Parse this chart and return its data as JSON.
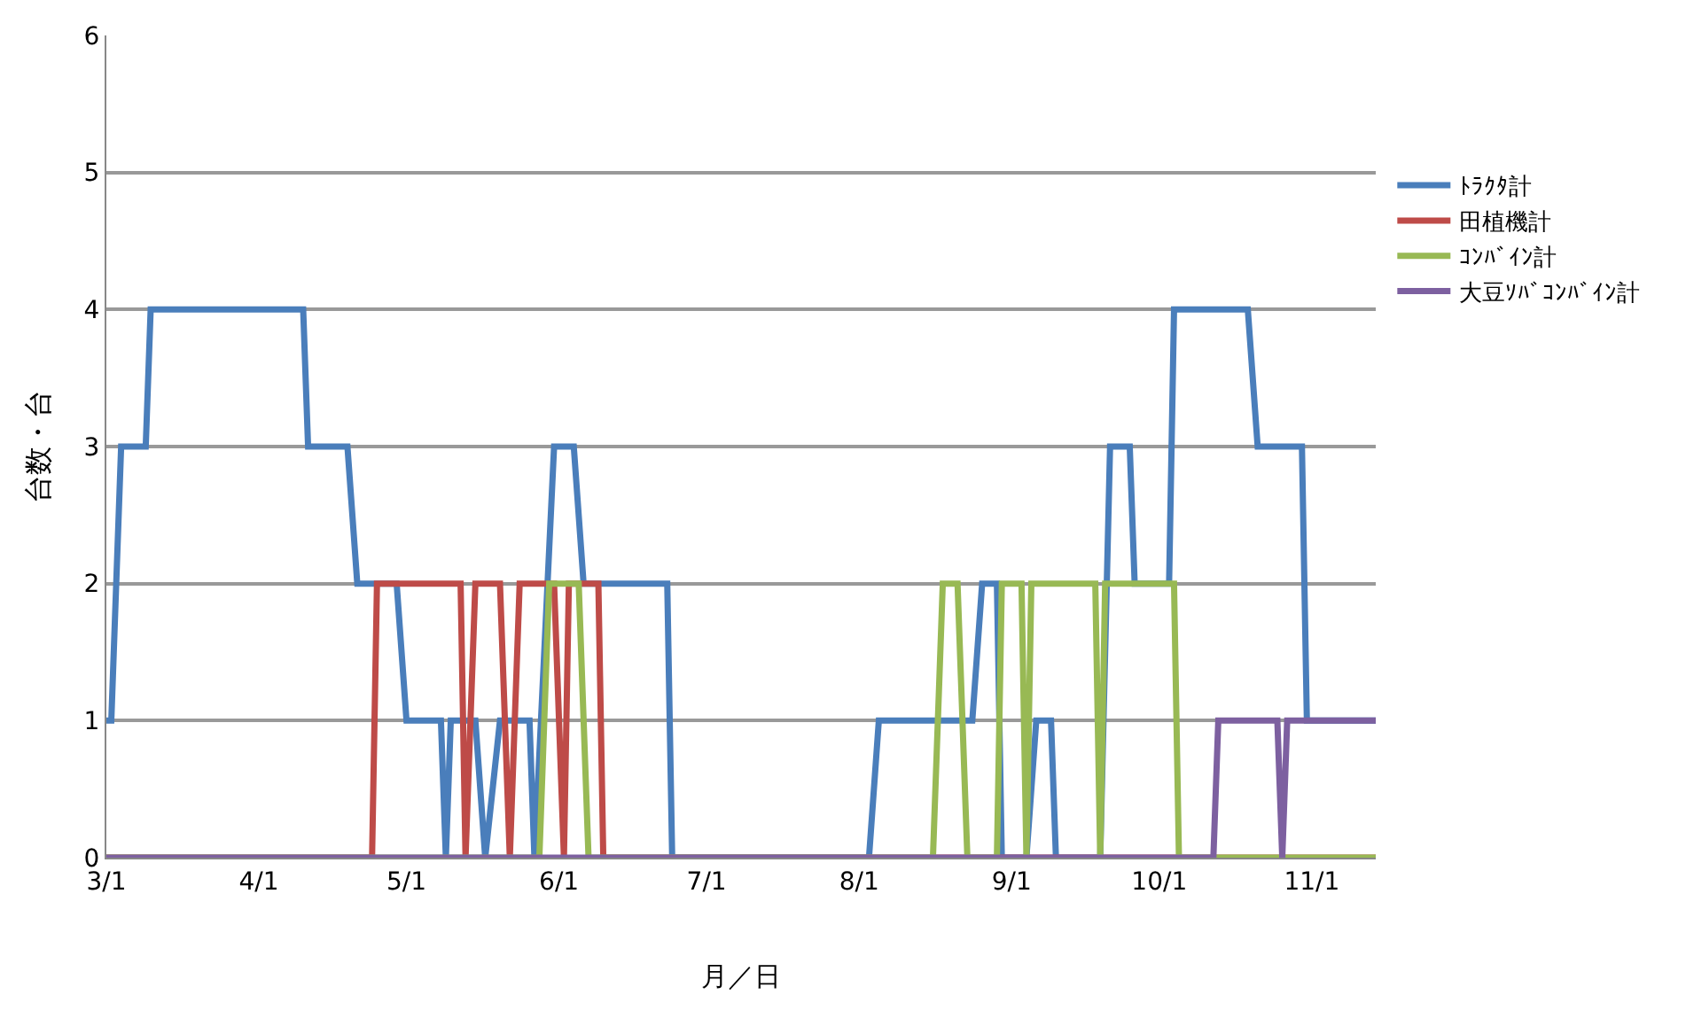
{
  "chart_data": {
    "type": "line",
    "xlabel": "月／日",
    "ylabel": "台数・台",
    "xlim": [
      "--03-01",
      "--11-14"
    ],
    "xticks": [
      {
        "value": "--03-01",
        "label": "3/1"
      },
      {
        "value": "--04-01",
        "label": "4/1"
      },
      {
        "value": "--05-01",
        "label": "5/1"
      },
      {
        "value": "--06-01",
        "label": "6/1"
      },
      {
        "value": "--07-01",
        "label": "7/1"
      },
      {
        "value": "--08-01",
        "label": "8/1"
      },
      {
        "value": "--09-01",
        "label": "9/1"
      },
      {
        "value": "--10-01",
        "label": "10/1"
      },
      {
        "value": "--11-01",
        "label": "11/1"
      }
    ],
    "ylim": [
      0,
      6
    ],
    "yticks": [
      0,
      1,
      2,
      3,
      4,
      5,
      6
    ],
    "grid": "y",
    "legend": "right",
    "marker": "none",
    "line_style": "solid",
    "series": [
      {
        "name": "ﾄﾗｸﾀ計",
        "color": "#4a7ebb",
        "x": [
          "--03-01",
          "--03-02",
          "--03-04",
          "--03-09",
          "--03-10",
          "--04-10",
          "--04-11",
          "--04-19",
          "--04-21",
          "--04-29",
          "--05-01",
          "--05-08",
          "--05-09",
          "--05-10",
          "--05-15",
          "--05-17",
          "--05-20",
          "--05-26",
          "--05-27",
          "--05-31",
          "--06-04",
          "--06-06",
          "--06-23",
          "--06-24",
          "--08-03",
          "--08-05",
          "--08-24",
          "--08-26",
          "--08-29",
          "--08-30",
          "--09-04",
          "--09-06",
          "--09-09",
          "--09-10",
          "--09-19",
          "--09-21",
          "--09-25",
          "--09-26",
          "--10-03",
          "--10-04",
          "--10-19",
          "--10-21",
          "--10-30",
          "--10-31",
          "--11-14"
        ],
        "values": [
          1,
          1,
          3,
          3,
          4,
          4,
          3,
          3,
          2,
          2,
          1,
          1,
          0,
          1,
          1,
          0,
          1,
          1,
          0,
          3,
          3,
          2,
          2,
          0,
          0,
          1,
          1,
          2,
          2,
          0,
          0,
          1,
          1,
          0,
          0,
          3,
          3,
          2,
          2,
          4,
          4,
          3,
          3,
          1,
          1
        ]
      },
      {
        "name": "田植機計",
        "color": "#be4b48",
        "x": [
          "--03-01",
          "--04-24",
          "--04-25",
          "--05-12",
          "--05-13",
          "--05-15",
          "--05-20",
          "--05-22",
          "--05-24",
          "--05-31",
          "--06-02",
          "--06-03",
          "--06-09",
          "--06-10",
          "--11-14"
        ],
        "values": [
          0,
          0,
          2,
          2,
          0,
          2,
          2,
          0,
          2,
          2,
          0,
          2,
          2,
          0,
          0
        ]
      },
      {
        "name": "ｺﾝﾊﾞｲﾝ計",
        "color": "#98b954",
        "x": [
          "--03-01",
          "--05-28",
          "--05-30",
          "--06-05",
          "--06-07",
          "--08-16",
          "--08-18",
          "--08-21",
          "--08-23",
          "--08-29",
          "--08-30",
          "--09-03",
          "--09-04",
          "--09-05",
          "--09-18",
          "--09-19",
          "--09-20",
          "--10-04",
          "--10-05",
          "--11-14"
        ],
        "values": [
          0,
          0,
          2,
          2,
          0,
          0,
          2,
          2,
          0,
          0,
          2,
          2,
          0,
          2,
          2,
          0,
          2,
          2,
          0,
          0
        ]
      },
      {
        "name": "大豆ｿﾊﾞｺﾝﾊﾞｲﾝ計",
        "color": "#7d60a0",
        "x": [
          "--03-01",
          "--10-12",
          "--10-13",
          "--10-25",
          "--10-26",
          "--10-27",
          "--11-14"
        ],
        "values": [
          0,
          0,
          1,
          1,
          0,
          1,
          1
        ]
      }
    ]
  }
}
